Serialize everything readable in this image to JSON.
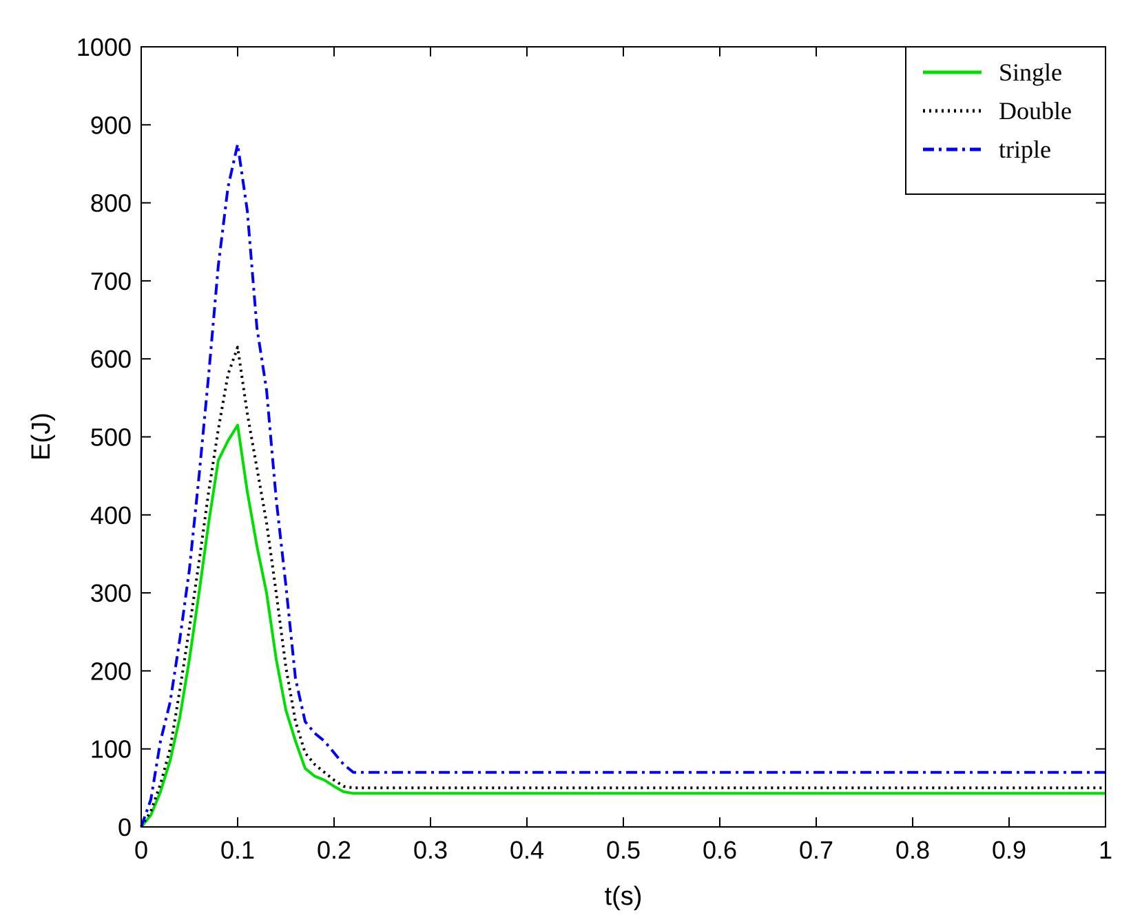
{
  "chart_data": {
    "type": "line",
    "title": "",
    "xlabel": "t(s)",
    "ylabel": "E(J)",
    "xlim": [
      0,
      1
    ],
    "ylim": [
      0,
      1000
    ],
    "xticks": [
      0,
      0.1,
      0.2,
      0.3,
      0.4,
      0.5,
      0.6,
      0.7,
      0.8,
      0.9,
      1
    ],
    "xtick_labels": [
      "0",
      "0.1",
      "0.2",
      "0.3",
      "0.4",
      "0.5",
      "0.6",
      "0.7",
      "0.8",
      "0.9",
      "1"
    ],
    "yticks": [
      0,
      100,
      200,
      300,
      400,
      500,
      600,
      700,
      800,
      900,
      1000
    ],
    "ytick_labels": [
      "0",
      "100",
      "200",
      "300",
      "400",
      "500",
      "600",
      "700",
      "800",
      "900",
      "1000"
    ],
    "grid": false,
    "legend_position": "top-right",
    "series": [
      {
        "name": "Single",
        "color": "#00e000",
        "style": "solid",
        "x": [
          0,
          0.01,
          0.02,
          0.03,
          0.04,
          0.05,
          0.06,
          0.07,
          0.08,
          0.09,
          0.1,
          0.11,
          0.12,
          0.13,
          0.14,
          0.15,
          0.16,
          0.17,
          0.18,
          0.19,
          0.2,
          0.21,
          0.22,
          0.3,
          0.4,
          0.5,
          0.6,
          0.7,
          0.8,
          0.9,
          1.0
        ],
        "y": [
          0,
          15,
          45,
          85,
          140,
          215,
          300,
          390,
          470,
          495,
          515,
          430,
          360,
          300,
          215,
          150,
          110,
          75,
          65,
          60,
          52,
          45,
          43,
          43,
          43,
          43,
          43,
          43,
          43,
          43,
          43
        ]
      },
      {
        "name": "Double",
        "color": "#000000",
        "style": "dotted",
        "x": [
          0,
          0.01,
          0.02,
          0.03,
          0.04,
          0.05,
          0.06,
          0.07,
          0.08,
          0.09,
          0.1,
          0.11,
          0.12,
          0.13,
          0.14,
          0.15,
          0.16,
          0.17,
          0.18,
          0.19,
          0.2,
          0.21,
          0.22,
          0.3,
          0.4,
          0.5,
          0.6,
          0.7,
          0.8,
          0.9,
          1.0
        ],
        "y": [
          0,
          20,
          55,
          100,
          175,
          255,
          340,
          430,
          510,
          580,
          615,
          530,
          460,
          390,
          300,
          205,
          135,
          95,
          80,
          70,
          60,
          52,
          50,
          50,
          50,
          50,
          50,
          50,
          50,
          50,
          50
        ]
      },
      {
        "name": "triple",
        "color": "#0000ff",
        "style": "dashdot",
        "x": [
          0,
          0.01,
          0.02,
          0.03,
          0.04,
          0.05,
          0.06,
          0.07,
          0.08,
          0.09,
          0.1,
          0.11,
          0.12,
          0.13,
          0.14,
          0.15,
          0.16,
          0.17,
          0.18,
          0.19,
          0.2,
          0.21,
          0.22,
          0.3,
          0.4,
          0.5,
          0.6,
          0.7,
          0.8,
          0.9,
          1.0
        ],
        "y": [
          0,
          35,
          110,
          160,
          240,
          330,
          450,
          580,
          720,
          820,
          875,
          790,
          640,
          560,
          420,
          310,
          190,
          135,
          120,
          110,
          95,
          80,
          70,
          70,
          70,
          70,
          70,
          70,
          70,
          70,
          70
        ]
      }
    ]
  }
}
